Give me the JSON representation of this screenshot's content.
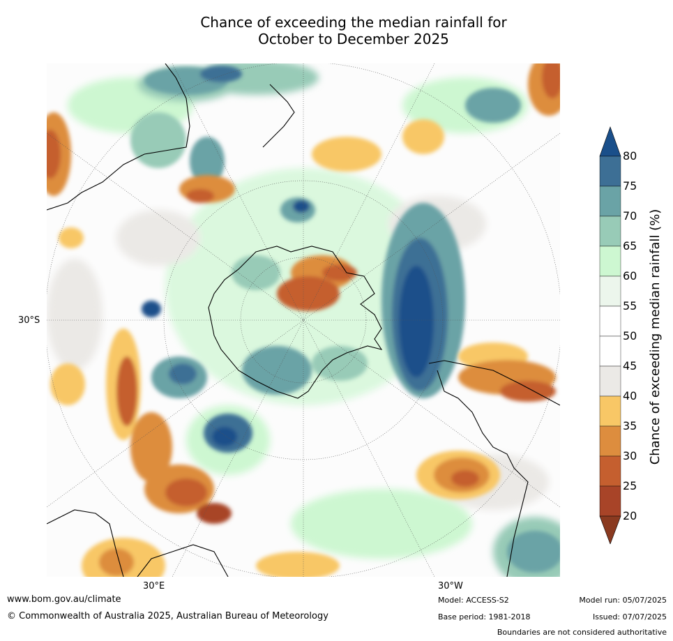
{
  "title": {
    "line1": "Chance of exceeding the median rainfall for",
    "line2": "October to December 2025"
  },
  "axis_labels": {
    "lat_30s": "30°S",
    "lon_30e": "30°E",
    "lon_30w": "30°W"
  },
  "colorbar": {
    "title": "Chance of exceeding median rainfall (%)",
    "ticks": [
      "80",
      "75",
      "70",
      "65",
      "60",
      "55",
      "50",
      "45",
      "40",
      "35",
      "30",
      "25",
      "20"
    ],
    "colors": {
      "over": "#1a4f8a",
      "75-80": "#3d6f95",
      "70-75": "#6aa3a6",
      "65-70": "#98cbb7",
      "60-65": "#cdf7d1",
      "55-60": "#ecf6ec",
      "50-55": "#ffffff",
      "45-50": "#ffffff",
      "40-45": "#ebe9e6",
      "35-40": "#f8c766",
      "30-35": "#dd8d3e",
      "25-30": "#c55f2f",
      "20-25": "#a84428",
      "under": "#8a3a20"
    }
  },
  "footer": {
    "website": "www.bom.gov.au/climate",
    "copyright": "© Commonwealth of Australia 2025, Australian Bureau of Meteorology",
    "model": "Model: ACCESS-S2",
    "base_period": "Base period: 1981-2018",
    "model_run": "Model run: 05/07/2025",
    "issued": "Issued: 07/07/2025",
    "disclaimer": "Boundaries are not considered authoritative"
  }
}
